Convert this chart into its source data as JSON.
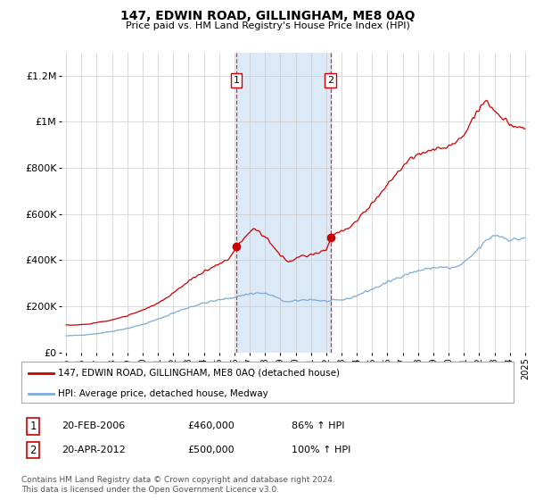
{
  "title": "147, EDWIN ROAD, GILLINGHAM, ME8 0AQ",
  "subtitle": "Price paid vs. HM Land Registry's House Price Index (HPI)",
  "background_color": "#ffffff",
  "plot_bg_color": "#ffffff",
  "grid_color": "#cccccc",
  "ylim": [
    0,
    1300000
  ],
  "yticks": [
    0,
    200000,
    400000,
    600000,
    800000,
    1000000,
    1200000
  ],
  "ytick_labels": [
    "£0",
    "£200K",
    "£400K",
    "£600K",
    "£800K",
    "£1M",
    "£1.2M"
  ],
  "sale1_x": 2006.12,
  "sale1_price": 460000,
  "sale1_label": "1",
  "sale1_date_str": "20-FEB-2006",
  "sale1_hpi_pct": "86% ↑ HPI",
  "sale2_x": 2012.29,
  "sale2_price": 500000,
  "sale2_label": "2",
  "sale2_date_str": "20-APR-2012",
  "sale2_hpi_pct": "100% ↑ HPI",
  "shade_color": "#dce9f7",
  "sale_marker_color": "#cc0000",
  "hpi_line_color": "#7aabdb",
  "price_line_color": "#cc0000",
  "legend_line1": "147, EDWIN ROAD, GILLINGHAM, ME8 0AQ (detached house)",
  "legend_line2": "HPI: Average price, detached house, Medway",
  "footer1": "Contains HM Land Registry data © Crown copyright and database right 2024.",
  "footer2": "This data is licensed under the Open Government Licence v3.0.",
  "xmin": 1994.7,
  "xmax": 2025.3
}
